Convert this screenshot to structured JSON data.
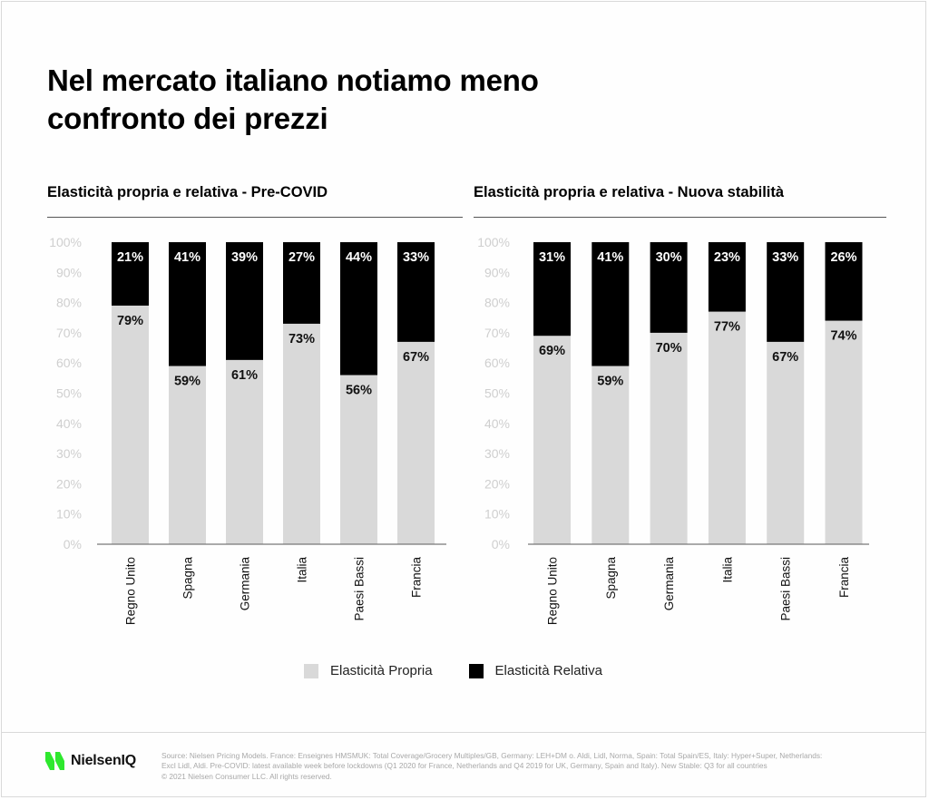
{
  "page": {
    "title": "Nel mercato italiano notiamo meno confronto dei prezzi",
    "title_line1": "Nel mercato italiano notiamo meno",
    "title_line2": "confronto dei prezzi"
  },
  "colors": {
    "propria": "#d9d9d9",
    "relativa": "#000000",
    "axis_label": "#cfcfcf",
    "brand_green": "#2ee82e"
  },
  "legend": {
    "items": [
      {
        "label": "Elasticità Propria",
        "color": "#d9d9d9"
      },
      {
        "label": "Elasticità Relativa",
        "color": "#000000"
      }
    ]
  },
  "footer": {
    "brand": "NielsenIQ",
    "source_line1": "Source: Nielsen Pricing Models. France: Enseignes HMSMUK: Total Coverage/Grocery Multiples/GB, Germany: LEH+DM o. Aldi, Lidl, Norma, Spain: Total Spain/ES, Italy: Hyper+Super, Netherlands:",
    "source_line2": "Excl Lidl, Aldi. Pre-COVID: latest available week before lockdowns (Q1 2020 for France, Netherlands and Q4 2019 for UK, Germany, Spain and Italy). New Stable: Q3 for all countries",
    "source_line3": "© 2021 Nielsen Consumer LLC. All rights reserved."
  },
  "chart_data": [
    {
      "type": "bar",
      "stacked": true,
      "title": "Elasticità propria e relativa - Pre-COVID",
      "xlabel": "",
      "ylabel": "",
      "ylim": [
        0,
        100
      ],
      "yticks": [
        "0%",
        "10%",
        "20%",
        "30%",
        "40%",
        "50%",
        "60%",
        "70%",
        "80%",
        "90%",
        "100%"
      ],
      "grid": false,
      "legend_position": "bottom-center",
      "categories": [
        "Regno Unito",
        "Spagna",
        "Germania",
        "Italia",
        "Paesi Bassi",
        "Francia"
      ],
      "series": [
        {
          "name": "Elasticità Propria",
          "values": [
            79,
            59,
            61,
            73,
            56,
            67
          ],
          "labels": [
            "79%",
            "59%",
            "61%",
            "73%",
            "56%",
            "67%"
          ]
        },
        {
          "name": "Elasticità Relativa",
          "values": [
            21,
            41,
            39,
            27,
            44,
            33
          ],
          "labels": [
            "21%",
            "41%",
            "39%",
            "27%",
            "44%",
            "33%"
          ]
        }
      ]
    },
    {
      "type": "bar",
      "stacked": true,
      "title": "Elasticità propria e relativa - Nuova stabilità",
      "xlabel": "",
      "ylabel": "",
      "ylim": [
        0,
        100
      ],
      "yticks": [
        "0%",
        "10%",
        "20%",
        "30%",
        "40%",
        "50%",
        "60%",
        "70%",
        "80%",
        "90%",
        "100%"
      ],
      "grid": false,
      "legend_position": "bottom-center",
      "categories": [
        "Regno Unito",
        "Spagna",
        "Germania",
        "Italia",
        "Paesi Bassi",
        "Francia"
      ],
      "series": [
        {
          "name": "Elasticità Propria",
          "values": [
            69,
            59,
            70,
            77,
            67,
            74
          ],
          "labels": [
            "69%",
            "59%",
            "70%",
            "77%",
            "67%",
            "74%"
          ]
        },
        {
          "name": "Elasticità Relativa",
          "values": [
            31,
            41,
            30,
            23,
            33,
            26
          ],
          "labels": [
            "31%",
            "41%",
            "30%",
            "23%",
            "33%",
            "26%"
          ]
        }
      ]
    }
  ]
}
